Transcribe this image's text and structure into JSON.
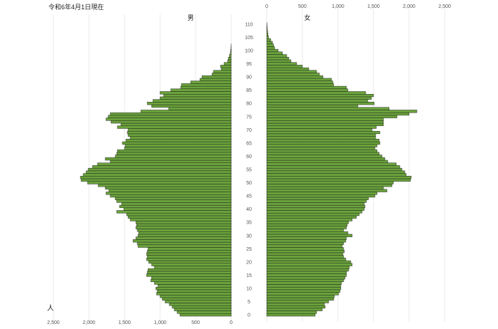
{
  "header": {
    "date_label": "令和6年4月1日現在",
    "unit_label": "人"
  },
  "chart_data": {
    "type": "bar",
    "orientation": "horizontal",
    "subtype": "population-pyramid",
    "title": "令和6年4月1日現在",
    "unit": "人",
    "age_axis": {
      "min": 0,
      "max": 110,
      "labels": [
        0,
        5,
        10,
        15,
        20,
        25,
        30,
        35,
        40,
        45,
        50,
        55,
        60,
        65,
        70,
        75,
        80,
        85,
        90,
        95,
        100,
        105,
        110
      ]
    },
    "x_ticks": [
      0,
      500,
      1000,
      1500,
      2000,
      2500
    ],
    "x_tick_labels": [
      "0",
      "500",
      "1,000",
      "1,500",
      "2,000",
      "2,500"
    ],
    "xlim": [
      0,
      2500
    ],
    "grid": true,
    "bar_color": "#6aa23c",
    "bar_edge_color": "#1a1a1a",
    "series": [
      {
        "name": "男",
        "side": "left",
        "values": [
          720,
          760,
          800,
          830,
          870,
          930,
          970,
          1000,
          1050,
          1040,
          1060,
          1030,
          1080,
          1130,
          1120,
          1190,
          1180,
          1170,
          1080,
          1120,
          1160,
          1190,
          1180,
          1190,
          1180,
          1170,
          1310,
          1320,
          1380,
          1340,
          1310,
          1300,
          1320,
          1340,
          1330,
          1340,
          1420,
          1450,
          1470,
          1610,
          1510,
          1570,
          1540,
          1610,
          1630,
          1700,
          1760,
          1720,
          1770,
          1870,
          2020,
          2110,
          2120,
          2080,
          2040,
          2010,
          1950,
          1880,
          1700,
          1770,
          1630,
          1610,
          1600,
          1500,
          1490,
          1530,
          1480,
          1420,
          1450,
          1460,
          1450,
          1600,
          1550,
          1690,
          1760,
          1730,
          1700,
          1270,
          880,
          1120,
          1180,
          1100,
          1000,
          950,
          1000,
          850,
          710,
          700,
          570,
          440,
          410,
          270,
          250,
          140,
          150,
          100,
          50,
          40,
          25,
          12,
          8,
          3,
          1,
          0,
          0,
          0,
          0,
          0,
          0,
          0,
          0
        ]
      },
      {
        "name": "女",
        "side": "right",
        "values": [
          680,
          700,
          780,
          820,
          810,
          870,
          940,
          950,
          1010,
          1030,
          1040,
          1040,
          1050,
          1080,
          1100,
          1120,
          1120,
          1150,
          1160,
          1200,
          1180,
          1110,
          1080,
          1070,
          1090,
          1080,
          1060,
          1080,
          1110,
          1120,
          1200,
          1140,
          1080,
          1120,
          1130,
          1150,
          1200,
          1260,
          1300,
          1340,
          1370,
          1380,
          1370,
          1400,
          1430,
          1520,
          1550,
          1690,
          1640,
          1760,
          1780,
          2020,
          2030,
          1960,
          1940,
          1900,
          1870,
          1820,
          1700,
          1660,
          1620,
          1580,
          1550,
          1520,
          1550,
          1590,
          1580,
          1530,
          1530,
          1590,
          1480,
          1540,
          1640,
          1640,
          1640,
          1830,
          2000,
          2110,
          1720,
          1280,
          1510,
          1420,
          1470,
          1500,
          1390,
          1140,
          1120,
          940,
          930,
          910,
          790,
          740,
          700,
          590,
          500,
          420,
          340,
          310,
          280,
          220,
          160,
          110,
          95,
          80,
          55,
          25,
          18,
          12,
          8,
          4,
          2
        ]
      }
    ]
  }
}
